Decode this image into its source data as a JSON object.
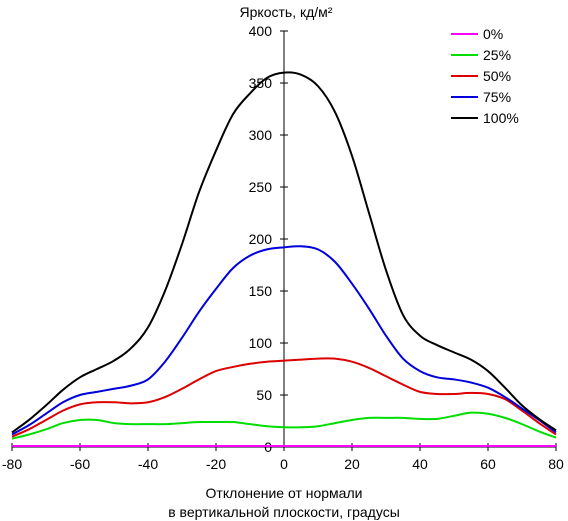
{
  "chart_data": {
    "type": "line",
    "title": "Яркость, кд/м²",
    "xlabel_lines": [
      "Отклонение от нормали",
      "в вертикальной плоскости, градусы"
    ],
    "xlim": [
      -80,
      80
    ],
    "ylim": [
      0,
      400
    ],
    "x_ticks": [
      "-80",
      "-60",
      "-40",
      "-20",
      "0",
      "20",
      "40",
      "60",
      "80"
    ],
    "y_ticks": [
      "0",
      "50",
      "100",
      "150",
      "200",
      "250",
      "300",
      "350",
      "400"
    ],
    "grid": false,
    "legend_position": "top-right",
    "series": [
      {
        "name": "0%",
        "color": "#ff00ff",
        "x": [
          -80,
          -70,
          -60,
          -50,
          -40,
          -30,
          -20,
          -10,
          0,
          10,
          20,
          30,
          40,
          50,
          60,
          70,
          80
        ],
        "y": [
          1,
          1,
          1,
          1,
          1,
          1,
          1,
          1,
          1,
          1,
          1,
          1,
          1,
          1,
          1,
          1,
          1
        ]
      },
      {
        "name": "25%",
        "color": "#00dd00",
        "x": [
          -80,
          -75,
          -70,
          -65,
          -60,
          -55,
          -50,
          -45,
          -40,
          -35,
          -30,
          -25,
          -20,
          -15,
          -10,
          -5,
          0,
          5,
          10,
          15,
          20,
          25,
          30,
          35,
          40,
          45,
          50,
          55,
          60,
          65,
          70,
          75,
          80
        ],
        "y": [
          8,
          12,
          17,
          23,
          26,
          26,
          23,
          22,
          22,
          22,
          23,
          24,
          24,
          24,
          22,
          20,
          19,
          19,
          20,
          23,
          26,
          28,
          28,
          28,
          27,
          27,
          30,
          33,
          32,
          28,
          22,
          15,
          9
        ]
      },
      {
        "name": "50%",
        "color": "#dd0000",
        "x": [
          -80,
          -75,
          -70,
          -65,
          -60,
          -55,
          -50,
          -45,
          -40,
          -35,
          -30,
          -25,
          -20,
          -15,
          -10,
          -5,
          0,
          5,
          10,
          15,
          20,
          25,
          30,
          35,
          40,
          45,
          50,
          55,
          60,
          65,
          70,
          75,
          80
        ],
        "y": [
          10,
          17,
          26,
          35,
          41,
          43,
          43,
          42,
          43,
          48,
          56,
          65,
          73,
          77,
          80,
          82,
          83,
          84,
          85,
          85,
          82,
          76,
          68,
          60,
          53,
          51,
          51,
          52,
          51,
          46,
          35,
          23,
          12
        ]
      },
      {
        "name": "75%",
        "color": "#0000dd",
        "x": [
          -80,
          -75,
          -70,
          -65,
          -60,
          -55,
          -50,
          -45,
          -40,
          -35,
          -30,
          -25,
          -20,
          -15,
          -10,
          -5,
          0,
          5,
          10,
          15,
          20,
          25,
          30,
          35,
          40,
          45,
          50,
          55,
          60,
          65,
          70,
          75,
          80
        ],
        "y": [
          12,
          21,
          32,
          43,
          50,
          53,
          56,
          59,
          65,
          82,
          105,
          130,
          152,
          172,
          184,
          190,
          192,
          193,
          190,
          178,
          157,
          133,
          107,
          85,
          73,
          67,
          65,
          62,
          57,
          48,
          37,
          26,
          14
        ]
      },
      {
        "name": "100%",
        "color": "#000000",
        "x": [
          -80,
          -75,
          -70,
          -65,
          -60,
          -55,
          -50,
          -45,
          -40,
          -35,
          -30,
          -25,
          -20,
          -15,
          -10,
          -5,
          0,
          5,
          10,
          15,
          20,
          25,
          30,
          35,
          40,
          45,
          50,
          55,
          60,
          65,
          70,
          75,
          80
        ],
        "y": [
          14,
          26,
          40,
          55,
          67,
          75,
          83,
          95,
          115,
          150,
          195,
          245,
          285,
          320,
          340,
          355,
          360,
          358,
          347,
          322,
          280,
          225,
          170,
          127,
          107,
          98,
          91,
          84,
          73,
          57,
          40,
          27,
          16
        ]
      }
    ]
  }
}
